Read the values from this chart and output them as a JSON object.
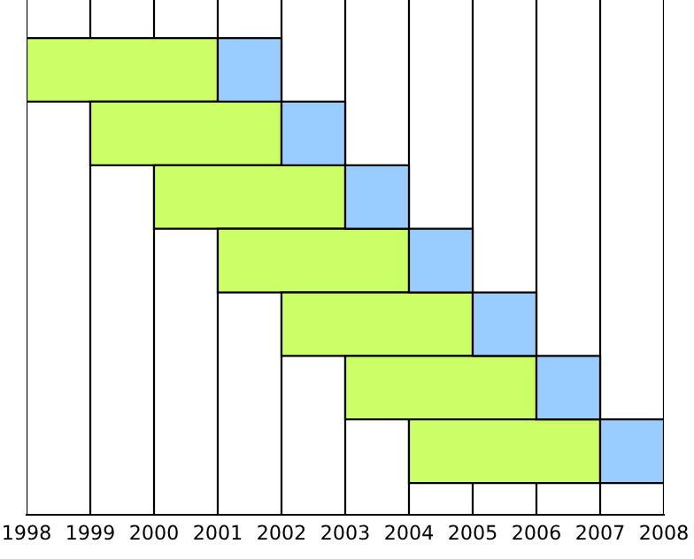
{
  "chart_data": {
    "type": "bar",
    "orientation": "horizontal",
    "categories": [
      null,
      null,
      null,
      null,
      null,
      null,
      null
    ],
    "series": [
      {
        "color": "#ccff66",
        "base": [
          1998,
          1999,
          2000,
          2001,
          2002,
          2003,
          2004
        ],
        "values": [
          3,
          3,
          3,
          3,
          3,
          3,
          3
        ]
      },
      {
        "color": "#99ccff",
        "base": [
          2001,
          2002,
          2003,
          2004,
          2005,
          2006,
          2007
        ],
        "values": [
          1,
          1,
          1,
          1,
          1,
          1,
          1
        ]
      }
    ],
    "xlim": [
      1998,
      2008
    ],
    "xticks": [
      1998,
      1999,
      2000,
      2001,
      2002,
      2003,
      2004,
      2005,
      2006,
      2007,
      2008
    ],
    "grid": "x"
  }
}
